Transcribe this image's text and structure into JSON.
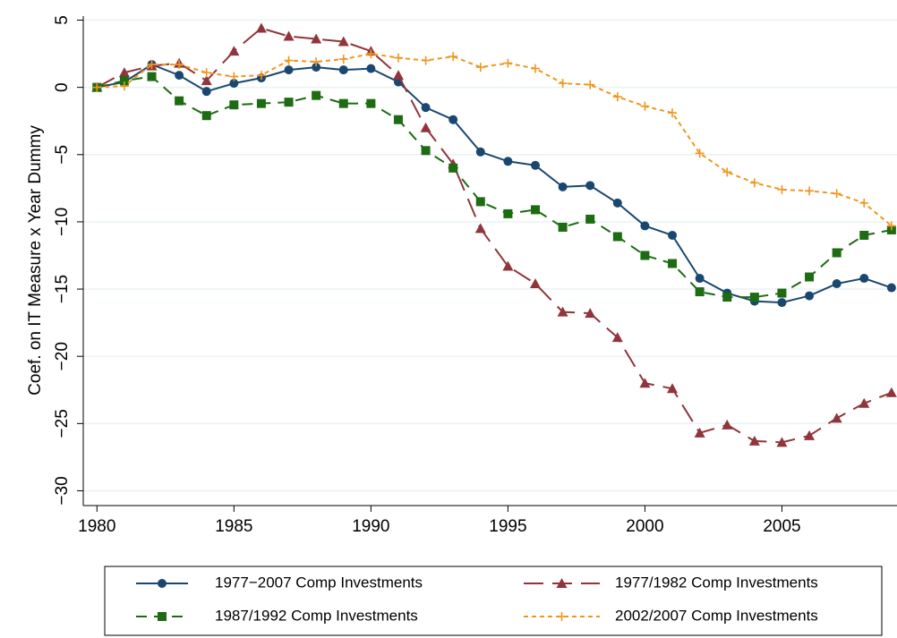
{
  "chart_data": {
    "type": "line",
    "y_label": "Coef. on IT Measure x Year Dummy",
    "x": [
      1980,
      1981,
      1982,
      1983,
      1984,
      1985,
      1986,
      1987,
      1988,
      1989,
      1990,
      1991,
      1992,
      1993,
      1994,
      1995,
      1996,
      1997,
      1998,
      1999,
      2000,
      2001,
      2002,
      2003,
      2004,
      2005,
      2006,
      2007,
      2008,
      2009
    ],
    "series": [
      {
        "name": "1977−2007 Comp Investments",
        "color": "#1a476f",
        "values": [
          0,
          0.4,
          1.7,
          0.9,
          -0.3,
          0.3,
          0.7,
          1.3,
          1.5,
          1.3,
          1.4,
          0.4,
          -1.5,
          -2.4,
          -4.8,
          -5.5,
          -5.8,
          -7.4,
          -7.3,
          -8.6,
          -10.3,
          -11.0,
          -14.2,
          -15.3,
          -15.9,
          -16.0,
          -15.5,
          -14.6,
          -14.2,
          -14.9
        ]
      },
      {
        "name": "1977/1982 Comp Investments",
        "color": "#90353b",
        "values": [
          0,
          1.1,
          1.6,
          1.8,
          0.5,
          2.7,
          4.4,
          3.8,
          3.6,
          3.4,
          2.7,
          0.9,
          -3.0,
          -5.7,
          -10.5,
          -13.3,
          -14.6,
          -16.7,
          -16.8,
          -18.6,
          -22.0,
          -22.4,
          -25.7,
          -25.1,
          -26.3,
          -26.4,
          -25.9,
          -24.6,
          -23.5,
          -22.7
        ]
      },
      {
        "name": "1987/1992 Comp Investments",
        "color": "#1d6b12",
        "values": [
          0,
          0.5,
          0.8,
          -1.0,
          -2.1,
          -1.3,
          -1.2,
          -1.1,
          -0.6,
          -1.2,
          -1.2,
          -2.4,
          -4.7,
          -6.0,
          -8.5,
          -9.4,
          -9.1,
          -10.4,
          -9.8,
          -11.1,
          -12.5,
          -13.1,
          -15.2,
          -15.6,
          -15.6,
          -15.3,
          -14.1,
          -12.3,
          -11.0,
          -10.6
        ]
      },
      {
        "name": "2002/2007 Comp Investments",
        "color": "#f0961e",
        "values": [
          0,
          0.1,
          1.7,
          1.7,
          1.1,
          0.8,
          0.9,
          2.0,
          1.9,
          2.1,
          2.5,
          2.2,
          2.0,
          2.3,
          1.5,
          1.8,
          1.4,
          0.3,
          0.2,
          -0.7,
          -1.4,
          -1.9,
          -4.9,
          -6.3,
          -7.1,
          -7.6,
          -7.7,
          -7.9,
          -8.6,
          -10.3
        ]
      }
    ],
    "xlim": [
      1979.5,
      2009.2
    ],
    "xticks": [
      1980,
      1985,
      1990,
      1995,
      2000,
      2005
    ],
    "ylim": [
      -31.1,
      5.3
    ],
    "yticks": [
      {
        "value": -30,
        "label": "−30"
      },
      {
        "value": -25,
        "label": "−25"
      },
      {
        "value": -20,
        "label": "−20"
      },
      {
        "value": -15,
        "label": "−15"
      },
      {
        "value": -10,
        "label": "−10"
      },
      {
        "value": -5,
        "label": "−5"
      },
      0,
      5
    ],
    "grid": true
  }
}
